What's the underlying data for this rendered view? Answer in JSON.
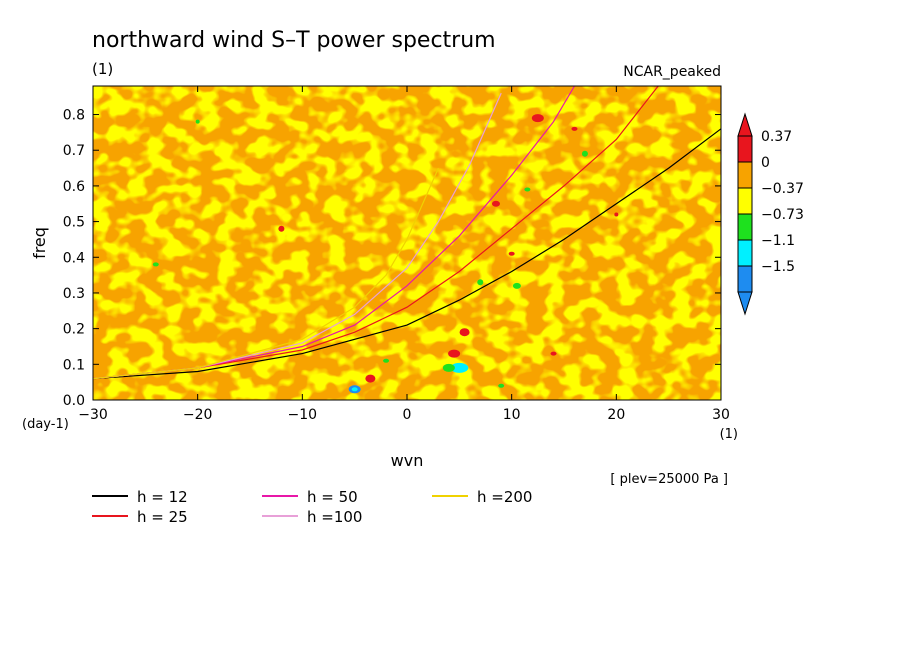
{
  "chart_data": {
    "type": "heatmap",
    "title": "northward wind S–T power spectrum",
    "subtitle_unit": "(1)",
    "model_label": "NCAR_peaked",
    "xlabel": "wvn",
    "ylabel": "freq",
    "x_unit": "(1)",
    "y_unit": "(day-1)",
    "xlim": [
      -30,
      30
    ],
    "ylim": [
      0,
      0.88
    ],
    "x_ticks": [
      {
        "v": -30,
        "label": "−30"
      },
      {
        "v": -20,
        "label": "−20"
      },
      {
        "v": -10,
        "label": "−10"
      },
      {
        "v": 0,
        "label": "0"
      },
      {
        "v": 10,
        "label": "10"
      },
      {
        "v": 20,
        "label": "20"
      },
      {
        "v": 30,
        "label": "30"
      }
    ],
    "y_ticks": [
      {
        "v": 0.0,
        "label": "0.0"
      },
      {
        "v": 0.1,
        "label": "0.1"
      },
      {
        "v": 0.2,
        "label": "0.2"
      },
      {
        "v": 0.3,
        "label": "0.3"
      },
      {
        "v": 0.4,
        "label": "0.4"
      },
      {
        "v": 0.5,
        "label": "0.5"
      },
      {
        "v": 0.6,
        "label": "0.6"
      },
      {
        "v": 0.7,
        "label": "0.7"
      },
      {
        "v": 0.8,
        "label": "0.8"
      }
    ],
    "colorbar": {
      "levels": [
        {
          "label": "0.37",
          "color": "#e8151e"
        },
        {
          "label": "0",
          "color": "#f7a300"
        },
        {
          "label": "−0.37",
          "color": "#ffff00"
        },
        {
          "label": "−0.73",
          "color": "#1ee11e"
        },
        {
          "label": "−1.1",
          "color": "#00f0ff"
        },
        {
          "label": "−1.5",
          "color": "#1e8cf0"
        }
      ],
      "top_color": "#e8151e",
      "bottom_color": "#1e8cf0"
    },
    "background_pattern": "mottled field of orange (0 to 0.37) and yellow (−0.37 to 0) with scattered small red, green and cyan patches near wavenumber 0 to 15",
    "series": [
      {
        "name": "h = 12",
        "color": "#000000",
        "x": [
          -30,
          -20,
          -10,
          0,
          5,
          10,
          15,
          20,
          25,
          30
        ],
        "y": [
          0.06,
          0.08,
          0.13,
          0.21,
          0.28,
          0.36,
          0.45,
          0.55,
          0.65,
          0.76
        ]
      },
      {
        "name": "h = 25",
        "color": "#e8151e",
        "x": [
          -30,
          -20,
          -10,
          -5,
          0,
          5,
          10,
          15,
          20,
          24
        ],
        "y": [
          0.06,
          0.09,
          0.14,
          0.19,
          0.26,
          0.36,
          0.48,
          0.6,
          0.73,
          0.88
        ]
      },
      {
        "name": "h = 50",
        "color": "#e817a8",
        "x": [
          -30,
          -20,
          -10,
          -5,
          0,
          5,
          10,
          14,
          16
        ],
        "y": [
          0.06,
          0.09,
          0.15,
          0.21,
          0.32,
          0.46,
          0.63,
          0.78,
          0.88
        ]
      },
      {
        "name": "h =100",
        "color": "#e8a0d8",
        "x": [
          -30,
          -20,
          -10,
          -5,
          0,
          3,
          6,
          9
        ],
        "y": [
          0.06,
          0.09,
          0.16,
          0.24,
          0.37,
          0.5,
          0.66,
          0.86
        ]
      },
      {
        "name": "h =200",
        "color": "#f0d200",
        "x": [
          -30,
          -20,
          -10,
          -5,
          -2,
          0,
          3
        ],
        "y": [
          0.06,
          0.09,
          0.17,
          0.26,
          0.35,
          0.45,
          0.65
        ]
      }
    ],
    "legend_placement": "bottom-left",
    "note": "[ plev=25000 Pa ]"
  }
}
